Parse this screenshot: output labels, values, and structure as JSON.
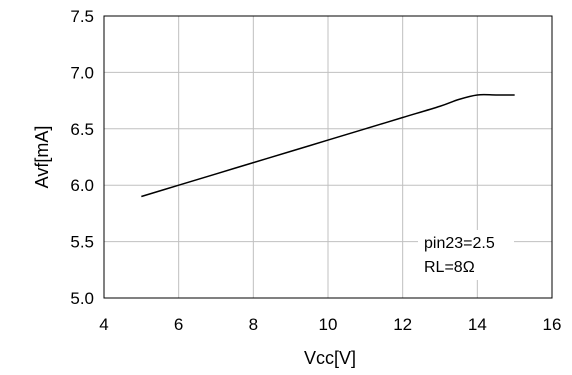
{
  "chart_data": {
    "type": "line",
    "title": "",
    "xlabel": "Vcc[V]",
    "ylabel": "Avf[mA]",
    "xlim": [
      4,
      16
    ],
    "ylim": [
      5.0,
      7.5
    ],
    "xticks": [
      4,
      6,
      8,
      10,
      12,
      14,
      16
    ],
    "yticks": [
      5.0,
      5.5,
      6.0,
      6.5,
      7.0,
      7.5
    ],
    "xtick_labels": [
      "4",
      "6",
      "8",
      "10",
      "12",
      "14",
      "16"
    ],
    "ytick_labels": [
      "5.0",
      "5.5",
      "6.0",
      "6.5",
      "7.0",
      "7.5"
    ],
    "grid": true,
    "series": [
      {
        "x": [
          5,
          6,
          7,
          8,
          9,
          10,
          11,
          12,
          13,
          13.5,
          14,
          14.5,
          15
        ],
        "y": [
          5.9,
          6.0,
          6.1,
          6.2,
          6.3,
          6.4,
          6.5,
          6.6,
          6.7,
          6.76,
          6.8,
          6.8,
          6.8
        ],
        "color": "#000000"
      }
    ],
    "annotations": [
      "pin23=2.5",
      "RL=8Ω"
    ]
  }
}
